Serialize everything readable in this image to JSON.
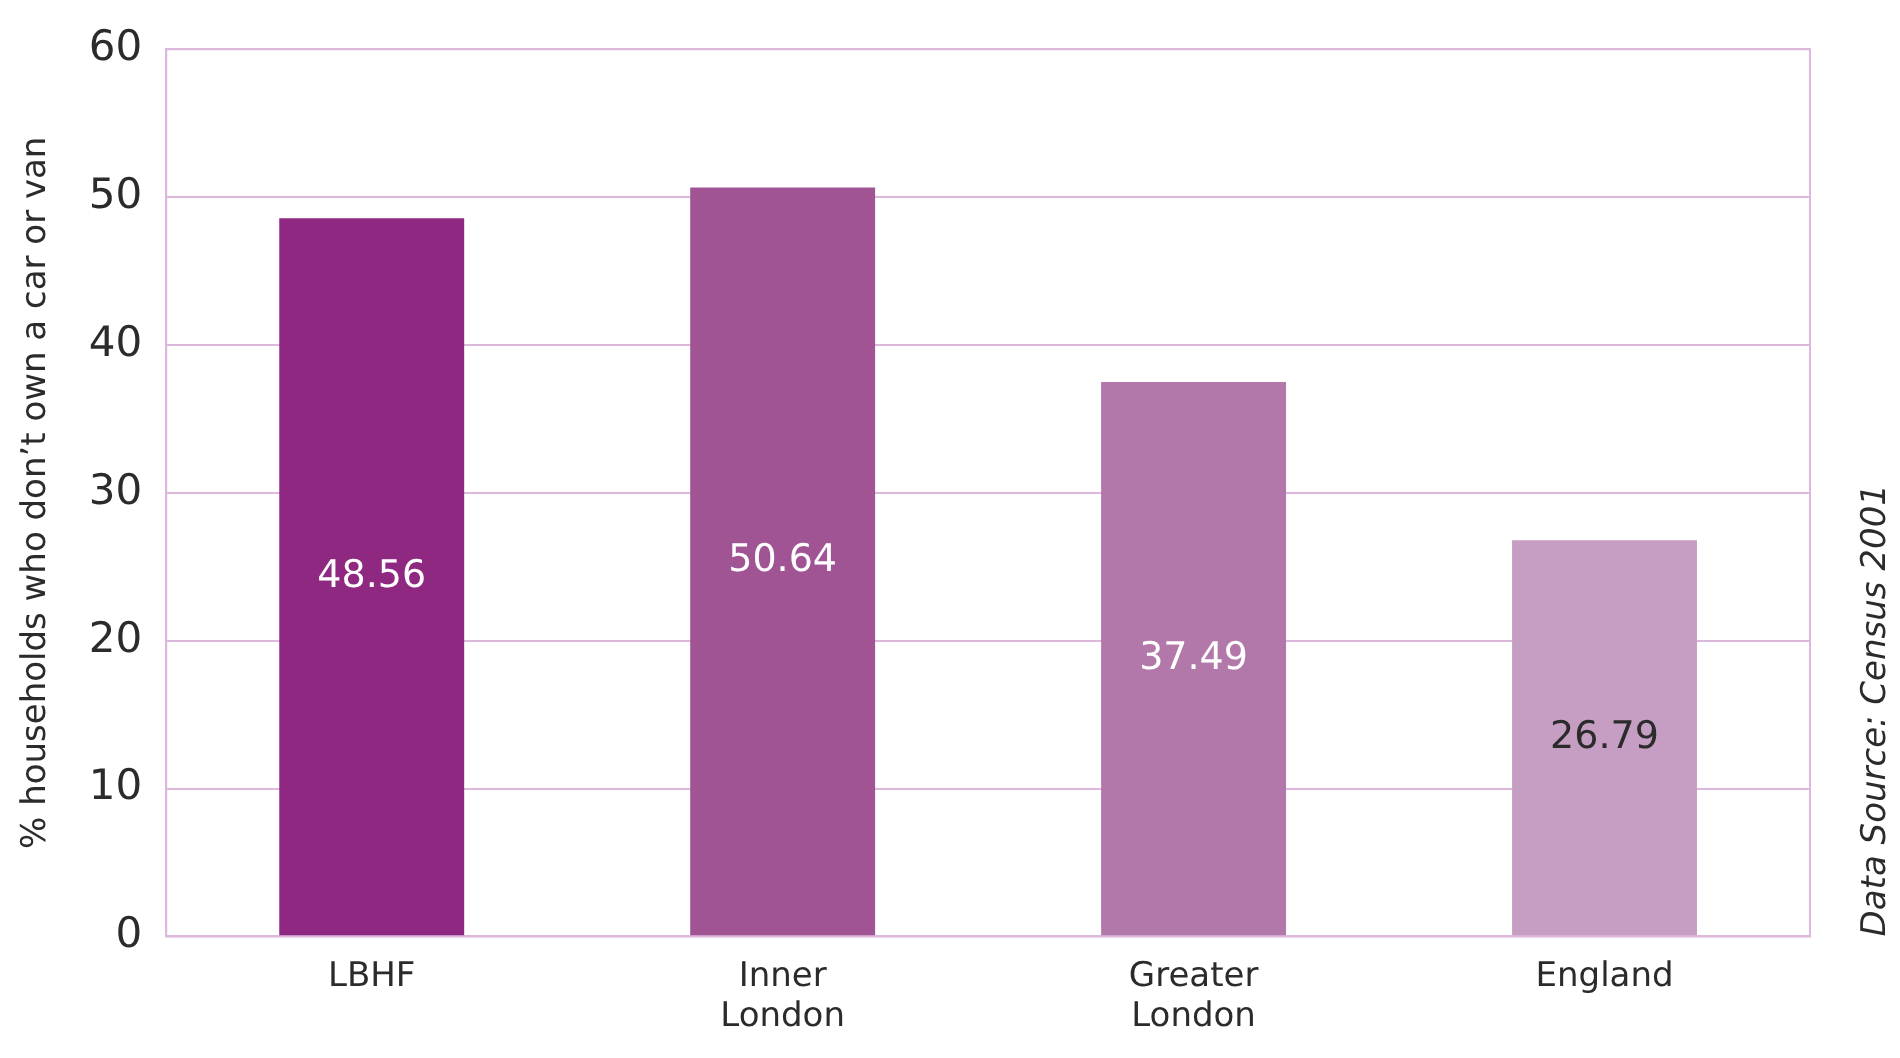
{
  "chart_data": {
    "type": "bar",
    "ylabel": "% households who don’t own a car or van",
    "categories": [
      "LBHF",
      "Inner London",
      "Greater London",
      "England"
    ],
    "values": [
      48.56,
      50.64,
      37.49,
      26.79
    ],
    "colors": [
      "#8f2881",
      "#a15494",
      "#b278a9",
      "#c79ec3"
    ],
    "ylim": [
      0,
      60
    ],
    "yticks": [
      0,
      10,
      20,
      30,
      40,
      50,
      60
    ],
    "grid": "y",
    "data_labels": true,
    "annotations": [
      "Data Source: Census 2001"
    ]
  }
}
